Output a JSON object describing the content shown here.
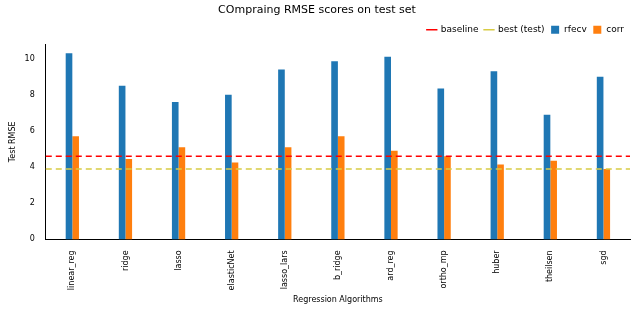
{
  "chart_data": {
    "type": "bar",
    "title": "COmpraing RMSE scores on test set",
    "x_label": "Regression Algorithms",
    "y_label": "Test RMSE",
    "categories": [
      "linear_reg",
      "ridge",
      "lasso",
      "elasticNet",
      "lasso_lars",
      "b_ridge",
      "ard_reg",
      "ortho_mp",
      "huber",
      "theilsen",
      "sgd"
    ],
    "series": [
      {
        "name": "baseline",
        "type": "line",
        "line_style": "dashed",
        "marker": "none",
        "color": "#ff0000",
        "values": [
          4.6,
          4.6,
          4.6,
          4.6,
          4.6,
          4.6,
          4.6,
          4.6,
          4.6,
          4.6,
          4.6
        ]
      },
      {
        "name": "best (test)",
        "type": "line",
        "line_style": "dashed",
        "marker": "none",
        "color": "#d8cc44",
        "values": [
          3.9,
          3.9,
          3.9,
          3.9,
          3.9,
          3.9,
          3.9,
          3.9,
          3.9,
          3.9,
          3.9
        ]
      },
      {
        "name": "rfecv",
        "color": "#1f77b4",
        "values": [
          10.3,
          8.5,
          7.6,
          8.0,
          9.4,
          9.85,
          10.1,
          8.35,
          9.3,
          6.9,
          9.0
        ]
      },
      {
        "name": "corr",
        "color": "#ff7f0e",
        "values": [
          5.7,
          4.45,
          5.1,
          4.25,
          5.1,
          5.7,
          4.9,
          4.6,
          4.15,
          4.35,
          3.9
        ]
      }
    ],
    "ylim": [
      0,
      10.8
    ],
    "yticks": [
      0,
      2,
      4,
      6,
      8,
      10
    ],
    "grid": false,
    "legend": "upper right"
  }
}
